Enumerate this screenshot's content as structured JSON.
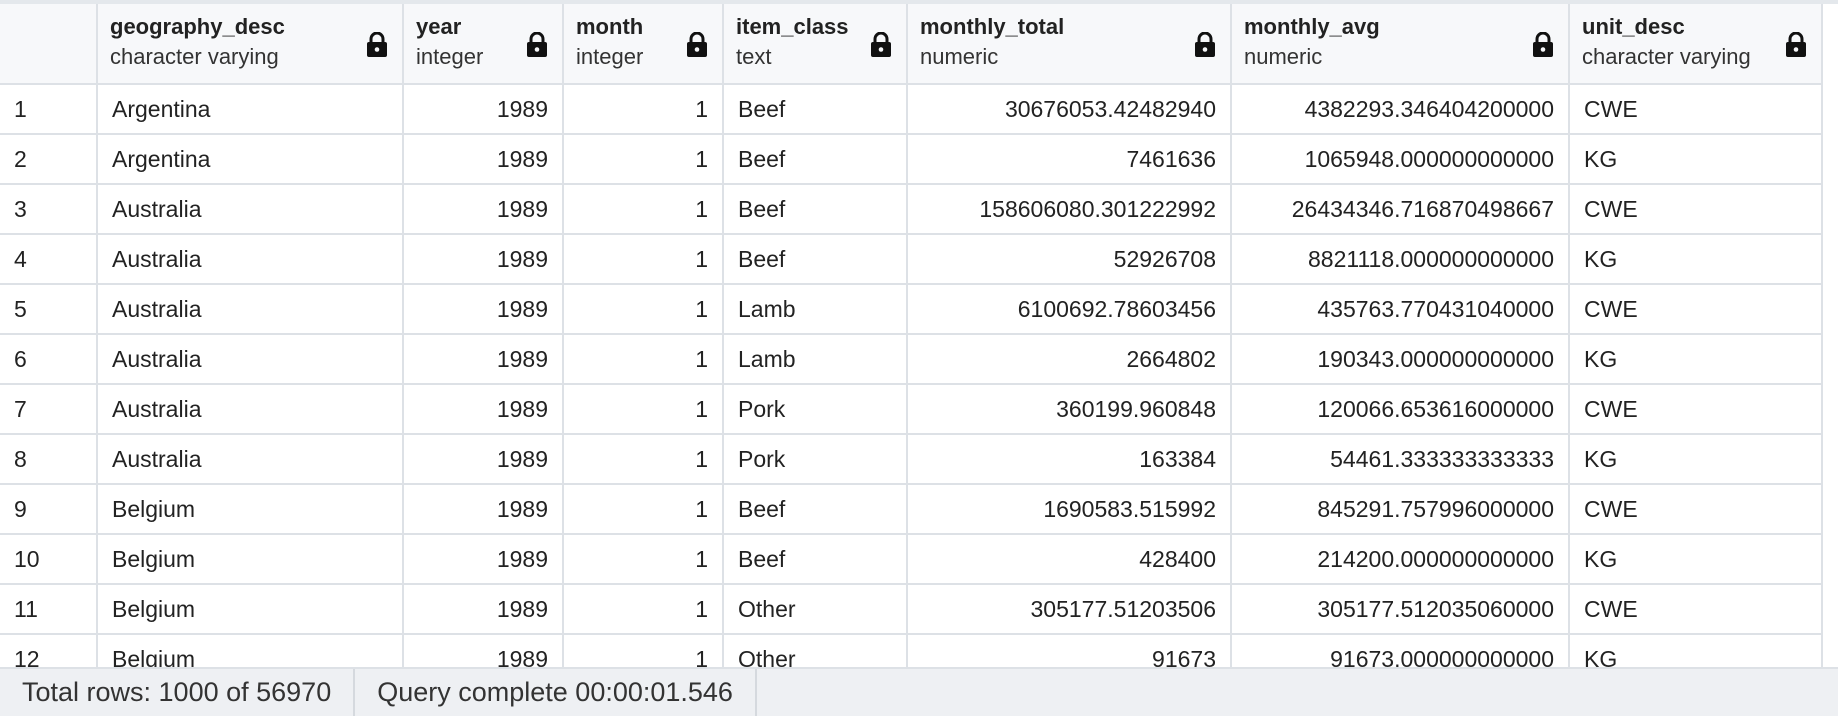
{
  "grid": {
    "columns": [
      {
        "name": "geography_desc",
        "type": "character varying",
        "align": "txt"
      },
      {
        "name": "year",
        "type": "integer",
        "align": "num"
      },
      {
        "name": "month",
        "type": "integer",
        "align": "num"
      },
      {
        "name": "item_class",
        "type": "text",
        "align": "txt"
      },
      {
        "name": "monthly_total",
        "type": "numeric",
        "align": "num"
      },
      {
        "name": "monthly_avg",
        "type": "numeric",
        "align": "num"
      },
      {
        "name": "unit_desc",
        "type": "character varying",
        "align": "txt"
      }
    ],
    "column_icon": "lock-icon",
    "rows": [
      {
        "n": "1",
        "cells": [
          "Argentina",
          "1989",
          "1",
          "Beef",
          "30676053.42482940",
          "4382293.346404200000",
          "CWE"
        ]
      },
      {
        "n": "2",
        "cells": [
          "Argentina",
          "1989",
          "1",
          "Beef",
          "7461636",
          "1065948.000000000000",
          "KG"
        ]
      },
      {
        "n": "3",
        "cells": [
          "Australia",
          "1989",
          "1",
          "Beef",
          "158606080.301222992",
          "26434346.716870498667",
          "CWE"
        ]
      },
      {
        "n": "4",
        "cells": [
          "Australia",
          "1989",
          "1",
          "Beef",
          "52926708",
          "8821118.000000000000",
          "KG"
        ]
      },
      {
        "n": "5",
        "cells": [
          "Australia",
          "1989",
          "1",
          "Lamb",
          "6100692.78603456",
          "435763.770431040000",
          "CWE"
        ]
      },
      {
        "n": "6",
        "cells": [
          "Australia",
          "1989",
          "1",
          "Lamb",
          "2664802",
          "190343.000000000000",
          "KG"
        ]
      },
      {
        "n": "7",
        "cells": [
          "Australia",
          "1989",
          "1",
          "Pork",
          "360199.960848",
          "120066.653616000000",
          "CWE"
        ]
      },
      {
        "n": "8",
        "cells": [
          "Australia",
          "1989",
          "1",
          "Pork",
          "163384",
          "54461.333333333333",
          "KG"
        ]
      },
      {
        "n": "9",
        "cells": [
          "Belgium",
          "1989",
          "1",
          "Beef",
          "1690583.515992",
          "845291.757996000000",
          "CWE"
        ]
      },
      {
        "n": "10",
        "cells": [
          "Belgium",
          "1989",
          "1",
          "Beef",
          "428400",
          "214200.000000000000",
          "KG"
        ]
      },
      {
        "n": "11",
        "cells": [
          "Belgium",
          "1989",
          "1",
          "Other",
          "305177.51203506",
          "305177.512035060000",
          "CWE"
        ]
      },
      {
        "n": "12",
        "cells": [
          "Belgium",
          "1989",
          "1",
          "Other",
          "91673",
          "91673.000000000000",
          "KG"
        ]
      }
    ]
  },
  "status": {
    "total_rows": "Total rows: 1000 of 56970",
    "query_status": "Query complete 00:00:01.546"
  },
  "colors": {
    "header_bg": "#f7f8fa",
    "grid_line": "#dde1e6",
    "status_bg": "#eef0f3"
  }
}
